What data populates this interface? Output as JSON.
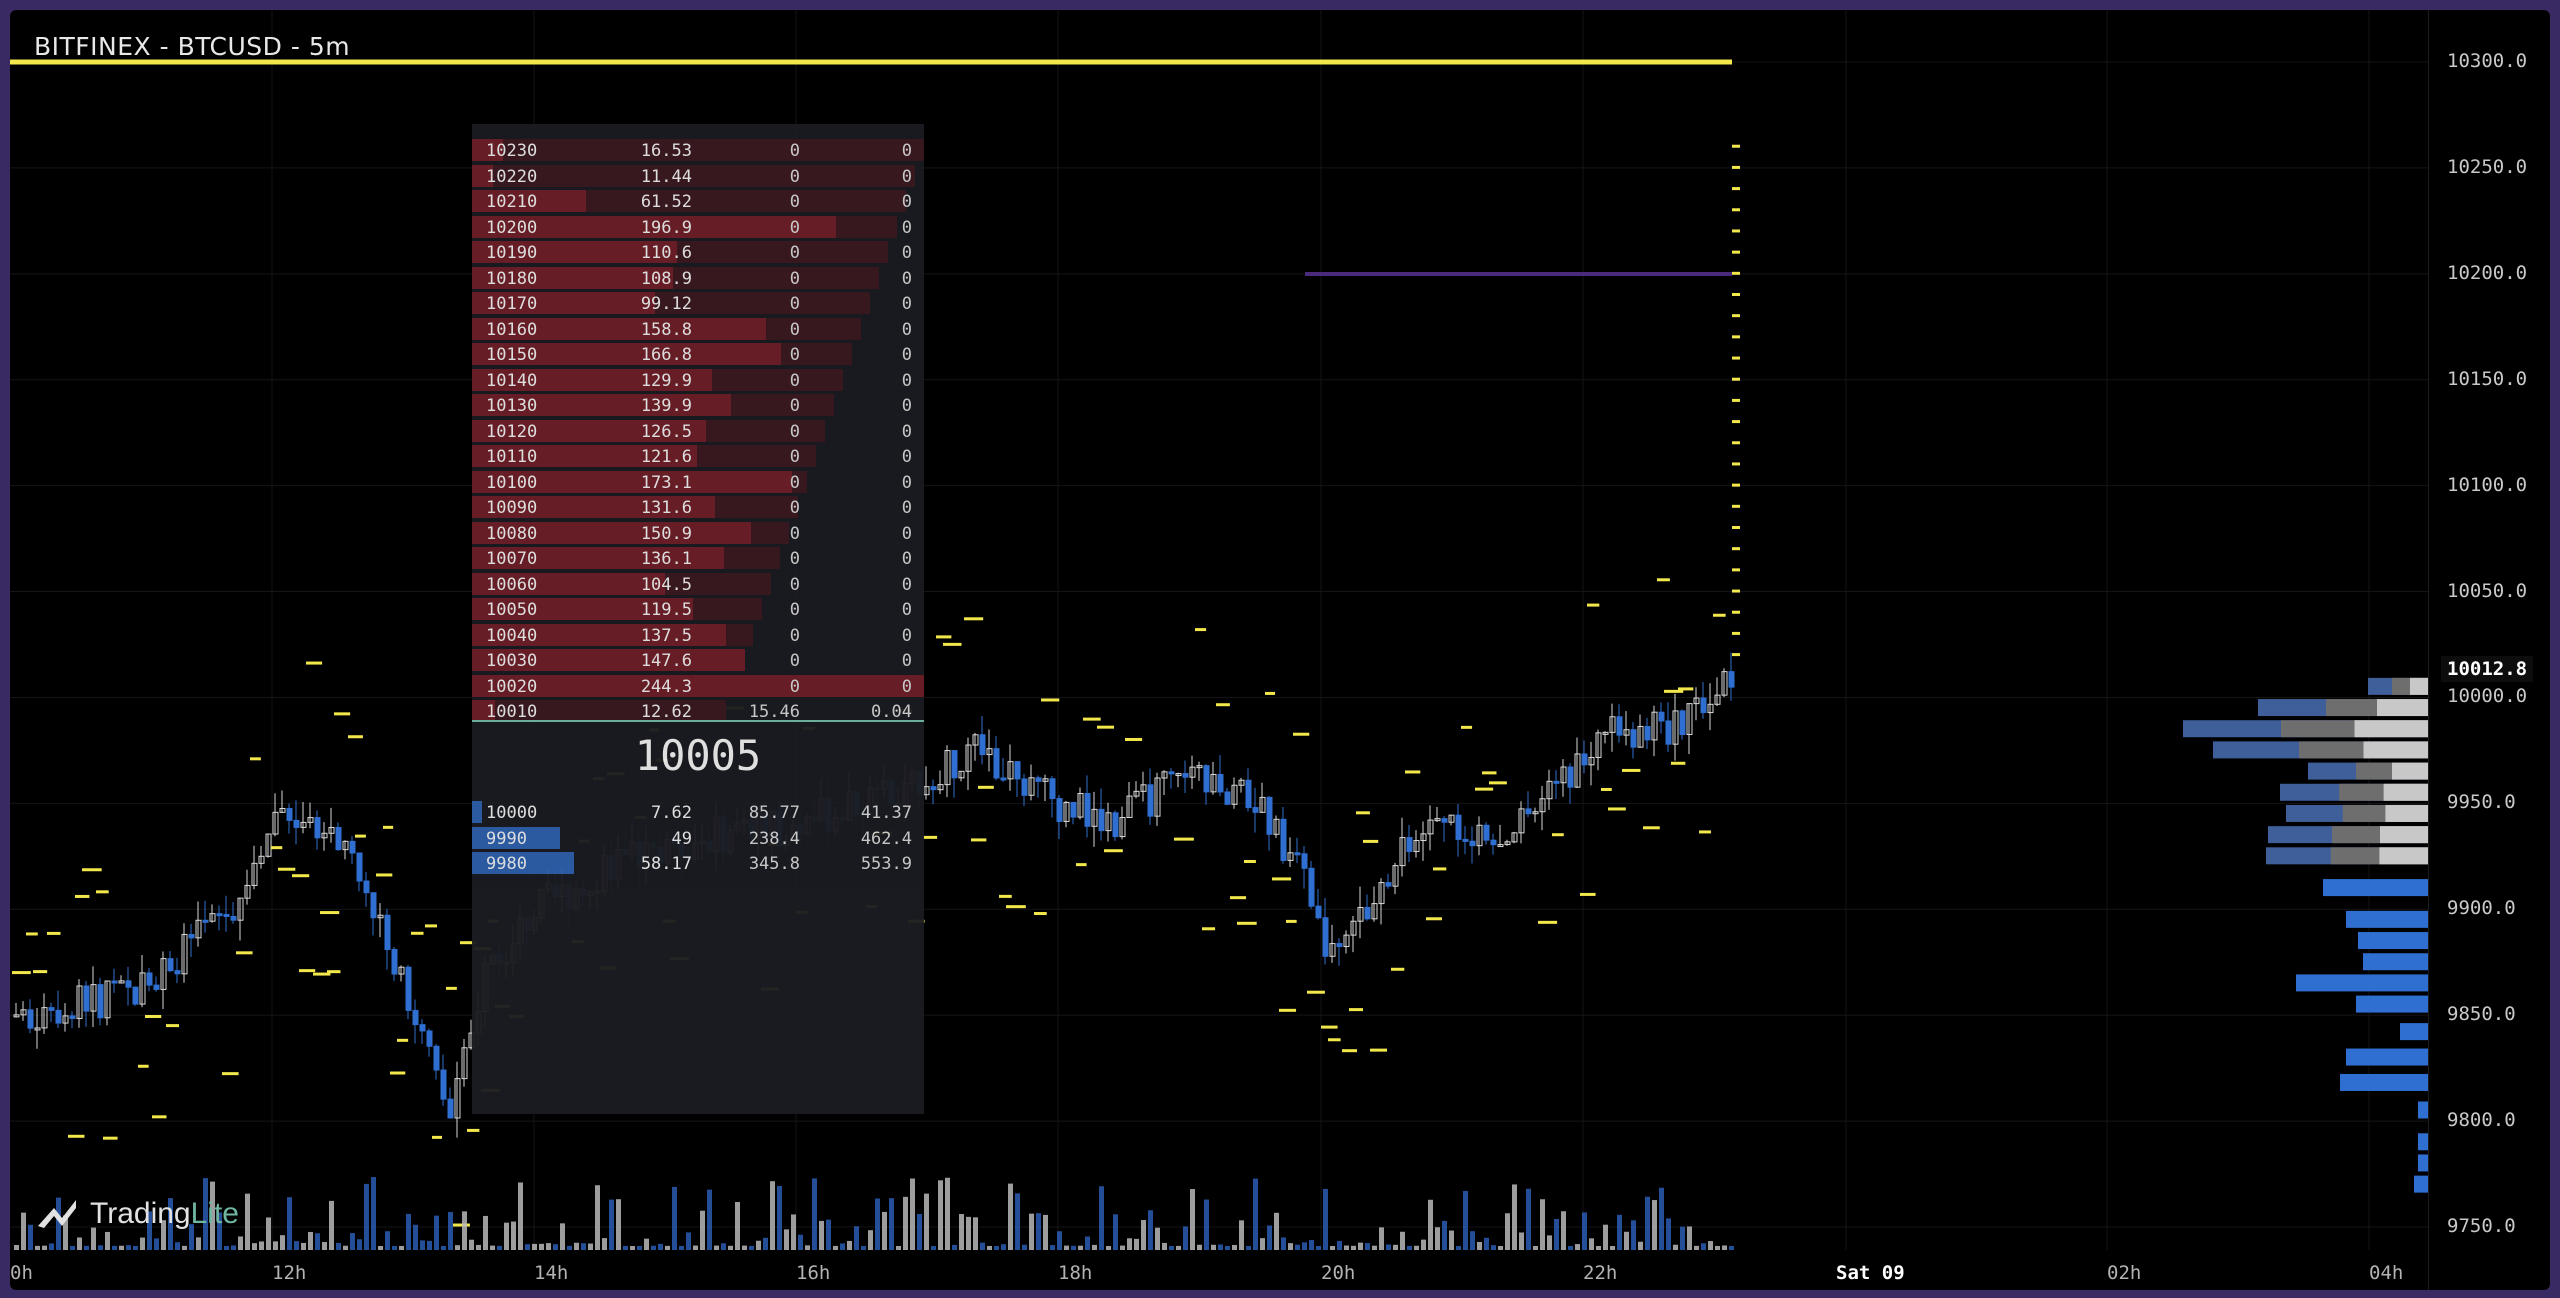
{
  "header": {
    "title": "BITFINEX - BTCUSD - 5m"
  },
  "brand": {
    "name": "Trading",
    "suffix": "Lite"
  },
  "price_axis": {
    "labels": [
      "10300.0",
      "10250.0",
      "10200.0",
      "10150.0",
      "10100.0",
      "10050.0",
      "10000.0",
      "9950.0",
      "9900.0",
      "9850.0",
      "9800.0",
      "9750.0"
    ],
    "current": "10012.8"
  },
  "time_axis": {
    "labels": [
      "0h",
      "12h",
      "14h",
      "16h",
      "18h",
      "20h",
      "22h",
      "Sat 09",
      "02h",
      "04h"
    ]
  },
  "orderbook": {
    "mid_price": "10005",
    "asks": [
      {
        "price": "10230",
        "size": "16.53",
        "c3": "0",
        "c4": "0"
      },
      {
        "price": "10220",
        "size": "11.44",
        "c3": "0",
        "c4": "0"
      },
      {
        "price": "10210",
        "size": "61.52",
        "c3": "0",
        "c4": "0"
      },
      {
        "price": "10200",
        "size": "196.9",
        "c3": "0",
        "c4": "0"
      },
      {
        "price": "10190",
        "size": "110.6",
        "c3": "0",
        "c4": "0"
      },
      {
        "price": "10180",
        "size": "108.9",
        "c3": "0",
        "c4": "0"
      },
      {
        "price": "10170",
        "size": "99.12",
        "c3": "0",
        "c4": "0"
      },
      {
        "price": "10160",
        "size": "158.8",
        "c3": "0",
        "c4": "0"
      },
      {
        "price": "10150",
        "size": "166.8",
        "c3": "0",
        "c4": "0"
      },
      {
        "price": "10140",
        "size": "129.9",
        "c3": "0",
        "c4": "0"
      },
      {
        "price": "10130",
        "size": "139.9",
        "c3": "0",
        "c4": "0"
      },
      {
        "price": "10120",
        "size": "126.5",
        "c3": "0",
        "c4": "0"
      },
      {
        "price": "10110",
        "size": "121.6",
        "c3": "0",
        "c4": "0"
      },
      {
        "price": "10100",
        "size": "173.1",
        "c3": "0",
        "c4": "0"
      },
      {
        "price": "10090",
        "size": "131.6",
        "c3": "0",
        "c4": "0"
      },
      {
        "price": "10080",
        "size": "150.9",
        "c3": "0",
        "c4": "0"
      },
      {
        "price": "10070",
        "size": "136.1",
        "c3": "0",
        "c4": "0"
      },
      {
        "price": "10060",
        "size": "104.5",
        "c3": "0",
        "c4": "0"
      },
      {
        "price": "10050",
        "size": "119.5",
        "c3": "0",
        "c4": "0"
      },
      {
        "price": "10040",
        "size": "137.5",
        "c3": "0",
        "c4": "0"
      },
      {
        "price": "10030",
        "size": "147.6",
        "c3": "0",
        "c4": "0"
      },
      {
        "price": "10020",
        "size": "244.3",
        "c3": "0",
        "c4": "0"
      },
      {
        "price": "10010",
        "size": "12.62",
        "c3": "15.46",
        "c4": "0.04"
      }
    ],
    "bids": [
      {
        "price": "10000",
        "size": "7.62",
        "c3": "85.77",
        "c4": "41.37"
      },
      {
        "price": "9990",
        "size": "49",
        "c3": "238.4",
        "c4": "462.4"
      },
      {
        "price": "9980",
        "size": "58.17",
        "c3": "345.8",
        "c4": "553.9"
      }
    ]
  },
  "colors": {
    "up": "#d9d9d9",
    "down": "#2f6fd1",
    "volume_up": "#b9b9b9",
    "volume_down": "#2a5cb3",
    "heatmap": "#f2e84b",
    "ask_bar": "#6b1f27",
    "bid_bar": "#2d5ea8"
  },
  "chart_data": {
    "type": "candlestick",
    "symbol": "BITFINEX - BTCUSD - 5m",
    "y_range": [
      9740,
      10310
    ],
    "last_price": 10012.8
  }
}
